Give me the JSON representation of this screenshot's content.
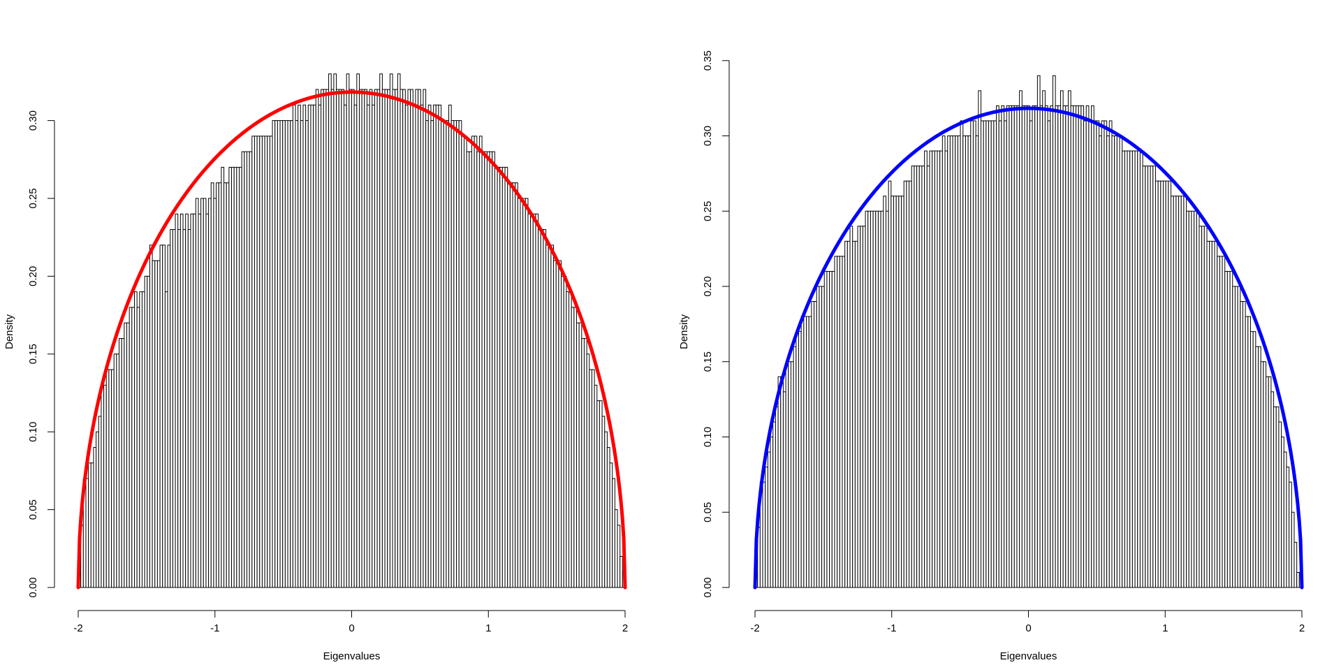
{
  "chart_data": [
    {
      "type": "bar",
      "title": "",
      "xlabel": "Eigenvalues",
      "ylabel": "Density",
      "xlim": [
        -2,
        2
      ],
      "ylim": [
        0,
        0.33
      ],
      "xticks": [
        -2,
        -1,
        0,
        1,
        2
      ],
      "yticks": [
        0,
        0.05,
        0.1,
        0.15,
        0.2,
        0.25,
        0.3
      ],
      "xtick_labels": [
        "-2",
        "-1",
        "0",
        "1",
        "2"
      ],
      "ytick_labels": [
        "0.00",
        "0.05",
        "0.10",
        "0.15",
        "0.20",
        "0.25",
        "0.30"
      ],
      "bin_width": 0.02,
      "grid": false,
      "bar_color": "#ffffff",
      "bar_edge_color": "#000000",
      "overlay": {
        "type": "line",
        "function": "semicircle",
        "color": "#ff0000"
      },
      "values": [
        0.02,
        0.04,
        0.07,
        0.07,
        0.08,
        0.08,
        0.09,
        0.1,
        0.11,
        0.13,
        0.13,
        0.14,
        0.14,
        0.14,
        0.15,
        0.15,
        0.16,
        0.16,
        0.17,
        0.17,
        0.18,
        0.18,
        0.19,
        0.18,
        0.19,
        0.19,
        0.2,
        0.2,
        0.22,
        0.21,
        0.21,
        0.21,
        0.22,
        0.22,
        0.19,
        0.22,
        0.23,
        0.23,
        0.24,
        0.23,
        0.24,
        0.23,
        0.24,
        0.23,
        0.24,
        0.24,
        0.25,
        0.24,
        0.25,
        0.25,
        0.24,
        0.25,
        0.26,
        0.25,
        0.26,
        0.26,
        0.27,
        0.26,
        0.26,
        0.27,
        0.27,
        0.27,
        0.27,
        0.27,
        0.28,
        0.28,
        0.28,
        0.28,
        0.29,
        0.29,
        0.29,
        0.29,
        0.29,
        0.29,
        0.29,
        0.29,
        0.3,
        0.3,
        0.3,
        0.3,
        0.3,
        0.3,
        0.3,
        0.3,
        0.31,
        0.3,
        0.31,
        0.3,
        0.31,
        0.3,
        0.31,
        0.31,
        0.31,
        0.32,
        0.31,
        0.32,
        0.32,
        0.32,
        0.33,
        0.32,
        0.33,
        0.32,
        0.32,
        0.32,
        0.31,
        0.33,
        0.32,
        0.32,
        0.31,
        0.33,
        0.32,
        0.32,
        0.32,
        0.31,
        0.32,
        0.31,
        0.32,
        0.32,
        0.33,
        0.32,
        0.32,
        0.32,
        0.33,
        0.32,
        0.32,
        0.33,
        0.32,
        0.32,
        0.31,
        0.32,
        0.32,
        0.31,
        0.32,
        0.32,
        0.31,
        0.32,
        0.3,
        0.31,
        0.3,
        0.31,
        0.31,
        0.31,
        0.3,
        0.3,
        0.3,
        0.31,
        0.3,
        0.3,
        0.3,
        0.3,
        0.29,
        0.29,
        0.28,
        0.28,
        0.29,
        0.29,
        0.28,
        0.29,
        0.28,
        0.28,
        0.28,
        0.28,
        0.28,
        0.27,
        0.27,
        0.27,
        0.27,
        0.27,
        0.26,
        0.26,
        0.26,
        0.26,
        0.25,
        0.25,
        0.25,
        0.25,
        0.24,
        0.24,
        0.24,
        0.24,
        0.23,
        0.23,
        0.23,
        0.22,
        0.22,
        0.22,
        0.21,
        0.21,
        0.21,
        0.2,
        0.2,
        0.19,
        0.19,
        0.18,
        0.18,
        0.17,
        0.17,
        0.16,
        0.16,
        0.15,
        0.14,
        0.14,
        0.13,
        0.12,
        0.12,
        0.11,
        0.1,
        0.09,
        0.08,
        0.07,
        0.05,
        0.04,
        0.02,
        0.01
      ]
    },
    {
      "type": "bar",
      "title": "",
      "xlabel": "Eigenvalues",
      "ylabel": "Density",
      "xlim": [
        -2,
        2
      ],
      "ylim": [
        0,
        0.35
      ],
      "xticks": [
        -2,
        -1,
        0,
        1,
        2
      ],
      "yticks": [
        0,
        0.05,
        0.1,
        0.15,
        0.2,
        0.25,
        0.3,
        0.35
      ],
      "xtick_labels": [
        "-2",
        "-1",
        "0",
        "1",
        "2"
      ],
      "ytick_labels": [
        "0.00",
        "0.05",
        "0.10",
        "0.15",
        "0.20",
        "0.25",
        "0.30",
        "0.35"
      ],
      "bin_width": 0.02,
      "grid": false,
      "bar_color": "#ffffff",
      "bar_edge_color": "#000000",
      "overlay": {
        "type": "line",
        "function": "semicircle",
        "color": "#0000ff"
      },
      "values": [
        0.01,
        0.04,
        0.07,
        0.07,
        0.08,
        0.09,
        0.1,
        0.11,
        0.12,
        0.14,
        0.14,
        0.13,
        0.15,
        0.15,
        0.15,
        0.16,
        0.17,
        0.17,
        0.18,
        0.18,
        0.18,
        0.18,
        0.19,
        0.19,
        0.2,
        0.2,
        0.2,
        0.21,
        0.21,
        0.21,
        0.21,
        0.22,
        0.22,
        0.22,
        0.22,
        0.23,
        0.23,
        0.24,
        0.23,
        0.23,
        0.24,
        0.24,
        0.24,
        0.25,
        0.25,
        0.25,
        0.25,
        0.25,
        0.25,
        0.25,
        0.26,
        0.25,
        0.27,
        0.26,
        0.26,
        0.26,
        0.26,
        0.26,
        0.27,
        0.27,
        0.27,
        0.28,
        0.28,
        0.28,
        0.28,
        0.28,
        0.29,
        0.28,
        0.29,
        0.29,
        0.29,
        0.29,
        0.29,
        0.3,
        0.29,
        0.3,
        0.3,
        0.3,
        0.3,
        0.3,
        0.31,
        0.3,
        0.3,
        0.3,
        0.31,
        0.31,
        0.3,
        0.33,
        0.31,
        0.31,
        0.31,
        0.31,
        0.31,
        0.31,
        0.32,
        0.31,
        0.32,
        0.31,
        0.32,
        0.32,
        0.32,
        0.32,
        0.32,
        0.33,
        0.32,
        0.32,
        0.32,
        0.31,
        0.32,
        0.32,
        0.34,
        0.32,
        0.33,
        0.32,
        0.31,
        0.32,
        0.34,
        0.32,
        0.32,
        0.33,
        0.32,
        0.32,
        0.33,
        0.32,
        0.32,
        0.32,
        0.32,
        0.32,
        0.31,
        0.32,
        0.31,
        0.32,
        0.31,
        0.31,
        0.3,
        0.31,
        0.31,
        0.3,
        0.31,
        0.3,
        0.3,
        0.3,
        0.3,
        0.29,
        0.29,
        0.29,
        0.29,
        0.29,
        0.29,
        0.29,
        0.29,
        0.28,
        0.28,
        0.28,
        0.28,
        0.28,
        0.27,
        0.27,
        0.27,
        0.27,
        0.27,
        0.27,
        0.26,
        0.26,
        0.26,
        0.26,
        0.26,
        0.26,
        0.25,
        0.25,
        0.25,
        0.25,
        0.25,
        0.24,
        0.24,
        0.24,
        0.23,
        0.23,
        0.23,
        0.23,
        0.22,
        0.22,
        0.22,
        0.21,
        0.21,
        0.21,
        0.2,
        0.2,
        0.2,
        0.19,
        0.19,
        0.18,
        0.18,
        0.17,
        0.17,
        0.16,
        0.16,
        0.15,
        0.15,
        0.14,
        0.14,
        0.13,
        0.12,
        0.12,
        0.11,
        0.1,
        0.09,
        0.08,
        0.07,
        0.05,
        0.03,
        0.01,
        0.01
      ]
    }
  ]
}
